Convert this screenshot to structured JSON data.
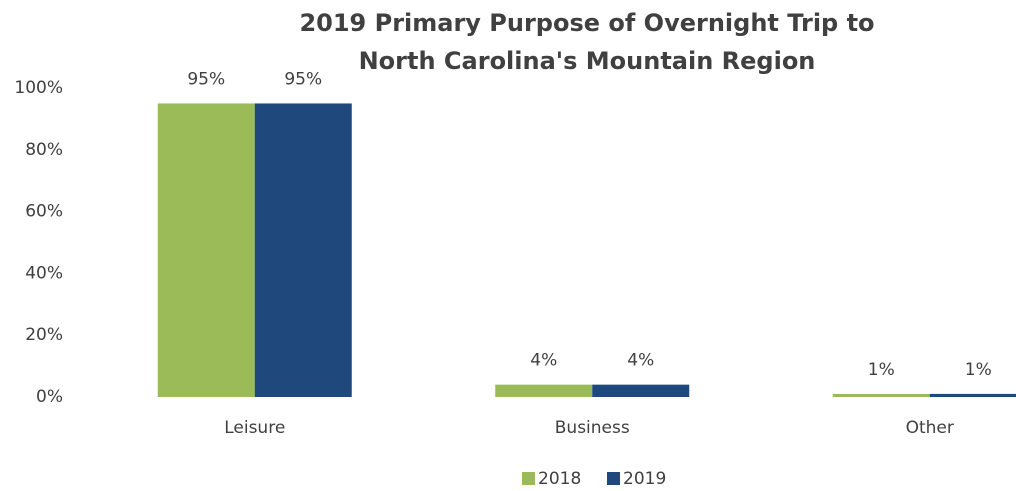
{
  "chart_data": {
    "type": "bar",
    "title": [
      "2019 Primary Purpose of Overnight Trip to",
      "North Carolina's Mountain Region"
    ],
    "categories": [
      "Leisure",
      "Business",
      "Other"
    ],
    "series": [
      {
        "name": "2018",
        "color": "#9bbb59",
        "values": [
          95,
          4,
          1
        ],
        "value_labels": [
          "95%",
          "4%",
          "1%"
        ]
      },
      {
        "name": "2019",
        "color": "#1f497d",
        "values": [
          95,
          4,
          1
        ],
        "value_labels": [
          "95%",
          "4%",
          "1%"
        ]
      }
    ],
    "ylim": [
      0,
      100
    ],
    "yticks": [
      {
        "value": 0,
        "label": "0%"
      },
      {
        "value": 20,
        "label": "20%"
      },
      {
        "value": 40,
        "label": "40%"
      },
      {
        "value": 60,
        "label": "60%"
      },
      {
        "value": 80,
        "label": "80%"
      },
      {
        "value": 100,
        "label": "100%"
      }
    ],
    "grid": false,
    "legend": "bottom"
  }
}
